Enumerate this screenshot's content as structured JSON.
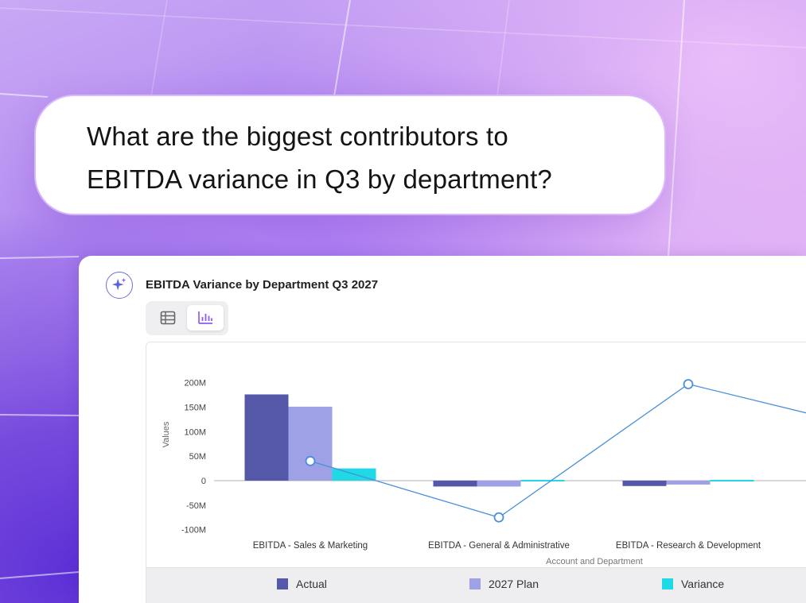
{
  "question": {
    "line1": "What are the biggest contributors to",
    "line2": "EBITDA variance in Q3 by department?"
  },
  "card": {
    "title": "EBITDA Variance by Department Q3 2027",
    "icons": {
      "assistant": "sparkle-icon",
      "table_view": "table-icon",
      "chart_view": "bar-chart-icon"
    },
    "active_view": "chart"
  },
  "colors": {
    "actual": "#5558a8",
    "plan": "#9ea1e6",
    "variance": "#1fd9e6",
    "line": "#4a90d9",
    "accent": "#8b5cf6"
  },
  "chart_data": {
    "type": "bar",
    "title": "",
    "xlabel": "Account and Department",
    "ylabel": "Values",
    "ylim": [
      -100,
      200
    ],
    "yticks": [
      200,
      150,
      100,
      50,
      0,
      -50,
      -100
    ],
    "ytick_labels": [
      "200M",
      "150M",
      "100M",
      "50M",
      "0",
      "-50M",
      "-100M"
    ],
    "categories": [
      "EBITDA - Sales & Marketing",
      "EBITDA - General & Administrative",
      "EBITDA - Research & Development"
    ],
    "series": [
      {
        "name": "Actual",
        "type": "bar",
        "values": [
          176,
          -12,
          -11
        ]
      },
      {
        "name": "2027 Plan",
        "type": "bar",
        "values": [
          151,
          -12,
          -8
        ]
      },
      {
        "name": "Variance",
        "type": "bar",
        "values": [
          25,
          0,
          -2
        ]
      },
      {
        "type": "line",
        "values": [
          40,
          -75,
          197
        ],
        "continues_to": 103
      }
    ],
    "grid": false,
    "legend": "bottom",
    "legend_entries": [
      "Actual",
      "2027 Plan",
      "Variance"
    ]
  }
}
